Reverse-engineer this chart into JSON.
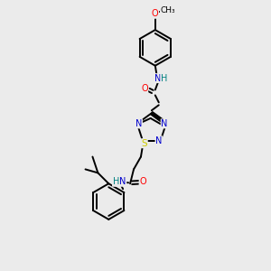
{
  "background_color": "#ebebeb",
  "colors": {
    "C": "#000000",
    "N": "#0000cc",
    "O": "#ff0000",
    "S": "#cccc00",
    "H": "#008080"
  },
  "figsize": [
    3.0,
    3.0
  ],
  "dpi": 100
}
